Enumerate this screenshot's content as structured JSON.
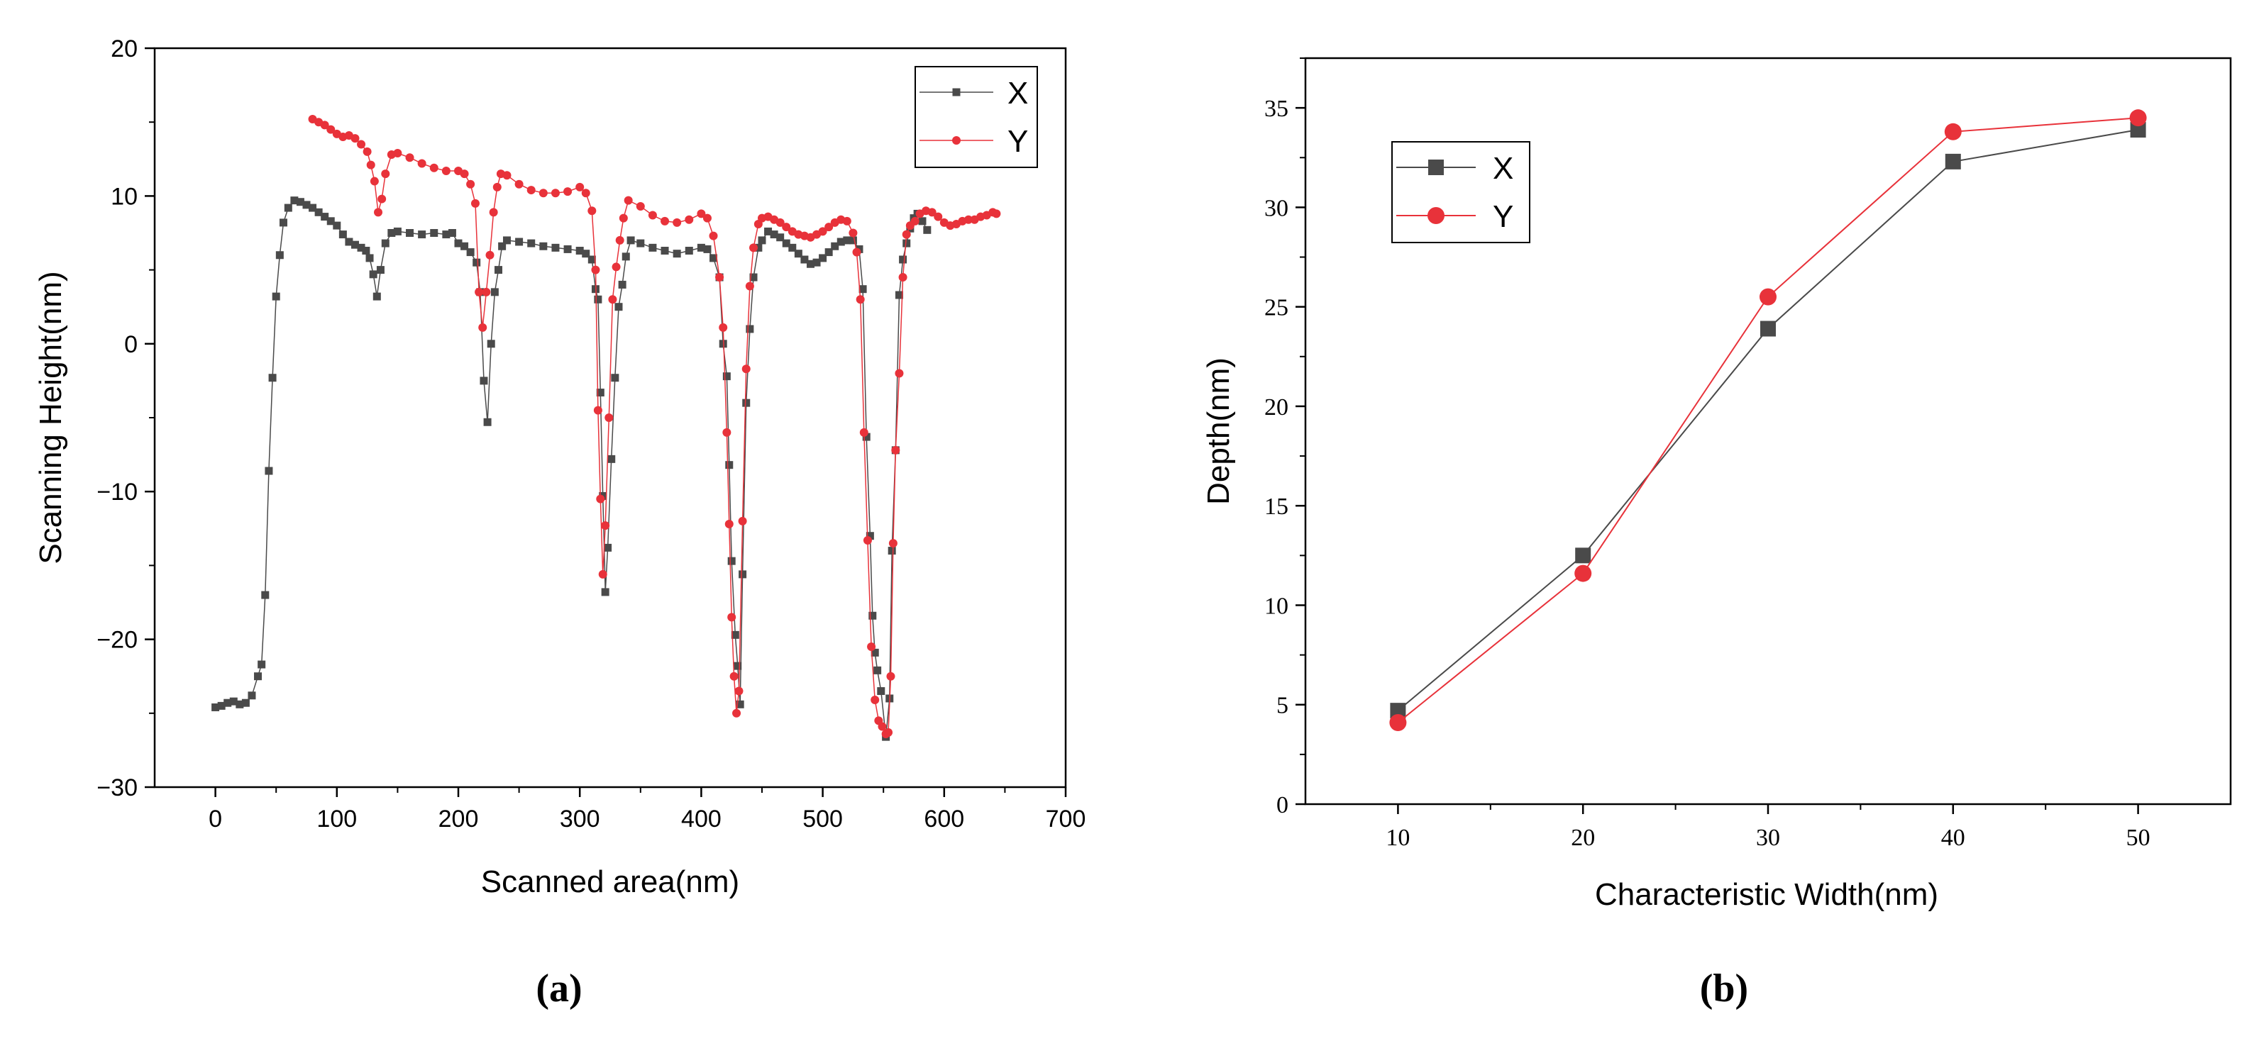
{
  "chart_data": [
    {
      "type": "scatter",
      "panel_label": "(a)",
      "title": "",
      "xlabel": "Scanned area(nm)",
      "ylabel": "Scanning Height(nm)",
      "xlim": [
        -50,
        700
      ],
      "ylim": [
        -30,
        20
      ],
      "xticks": [
        0,
        100,
        200,
        300,
        400,
        500,
        600,
        700
      ],
      "yticks": [
        -30,
        -20,
        -10,
        0,
        10,
        20
      ],
      "legend": "top-right",
      "series": [
        {
          "name": "X",
          "color": "#4a4a4a",
          "marker": "square",
          "points": [
            [
              0,
              -24.6
            ],
            [
              5,
              -24.5
            ],
            [
              10,
              -24.3
            ],
            [
              15,
              -24.2
            ],
            [
              20,
              -24.4
            ],
            [
              25,
              -24.3
            ],
            [
              30,
              -23.8
            ],
            [
              35,
              -22.5
            ],
            [
              38,
              -21.7
            ],
            [
              41,
              -17
            ],
            [
              44,
              -8.6
            ],
            [
              47,
              -2.3
            ],
            [
              50,
              3.2
            ],
            [
              53,
              6
            ],
            [
              56,
              8.2
            ],
            [
              60,
              9.2
            ],
            [
              65,
              9.7
            ],
            [
              70,
              9.6
            ],
            [
              75,
              9.4
            ],
            [
              80,
              9.2
            ],
            [
              85,
              8.9
            ],
            [
              90,
              8.6
            ],
            [
              95,
              8.3
            ],
            [
              100,
              8
            ],
            [
              105,
              7.4
            ],
            [
              110,
              6.9
            ],
            [
              115,
              6.7
            ],
            [
              120,
              6.5
            ],
            [
              124,
              6.3
            ],
            [
              127,
              5.8
            ],
            [
              130,
              4.7
            ],
            [
              133,
              3.2
            ],
            [
              136,
              5
            ],
            [
              140,
              6.8
            ],
            [
              145,
              7.5
            ],
            [
              150,
              7.6
            ],
            [
              160,
              7.5
            ],
            [
              170,
              7.4
            ],
            [
              180,
              7.5
            ],
            [
              190,
              7.4
            ],
            [
              195,
              7.5
            ],
            [
              200,
              6.8
            ],
            [
              205,
              6.6
            ],
            [
              210,
              6.2
            ],
            [
              215,
              5.5
            ],
            [
              218,
              3.5
            ],
            [
              221,
              -2.5
            ],
            [
              224,
              -5.3
            ],
            [
              227,
              0
            ],
            [
              230,
              3.5
            ],
            [
              233,
              5
            ],
            [
              236,
              6.6
            ],
            [
              240,
              7
            ],
            [
              250,
              6.9
            ],
            [
              260,
              6.8
            ],
            [
              270,
              6.6
            ],
            [
              280,
              6.5
            ],
            [
              290,
              6.4
            ],
            [
              300,
              6.3
            ],
            [
              305,
              6.1
            ],
            [
              310,
              5.7
            ],
            [
              313,
              3.7
            ],
            [
              315,
              3
            ],
            [
              317,
              -3.3
            ],
            [
              319,
              -10.3
            ],
            [
              321,
              -16.8
            ],
            [
              323,
              -13.8
            ],
            [
              326,
              -7.8
            ],
            [
              329,
              -2.3
            ],
            [
              332,
              2.5
            ],
            [
              335,
              4
            ],
            [
              338,
              5.9
            ],
            [
              342,
              7
            ],
            [
              350,
              6.8
            ],
            [
              360,
              6.5
            ],
            [
              370,
              6.3
            ],
            [
              380,
              6.1
            ],
            [
              390,
              6.3
            ],
            [
              400,
              6.5
            ],
            [
              405,
              6.4
            ],
            [
              410,
              5.8
            ],
            [
              415,
              4.5
            ],
            [
              418,
              0
            ],
            [
              421,
              -2.2
            ],
            [
              423,
              -8.2
            ],
            [
              425,
              -14.7
            ],
            [
              428,
              -19.7
            ],
            [
              430,
              -21.8
            ],
            [
              432,
              -24.4
            ],
            [
              434,
              -15.6
            ],
            [
              437,
              -4
            ],
            [
              440,
              1
            ],
            [
              443,
              4.5
            ],
            [
              447,
              6.5
            ],
            [
              450,
              7
            ],
            [
              455,
              7.6
            ],
            [
              460,
              7.4
            ],
            [
              465,
              7.2
            ],
            [
              470,
              6.8
            ],
            [
              475,
              6.5
            ],
            [
              480,
              6.1
            ],
            [
              485,
              5.7
            ],
            [
              490,
              5.4
            ],
            [
              495,
              5.5
            ],
            [
              500,
              5.8
            ],
            [
              505,
              6.2
            ],
            [
              510,
              6.6
            ],
            [
              515,
              6.9
            ],
            [
              520,
              7
            ],
            [
              525,
              7
            ],
            [
              530,
              6.4
            ],
            [
              533,
              3.7
            ],
            [
              536,
              -6.3
            ],
            [
              539,
              -13
            ],
            [
              541,
              -18.4
            ],
            [
              543,
              -20.9
            ],
            [
              545,
              -22.1
            ],
            [
              548,
              -23.5
            ],
            [
              552,
              -26.6
            ],
            [
              555,
              -24
            ],
            [
              557,
              -14
            ],
            [
              560,
              -7.2
            ],
            [
              563,
              3.3
            ],
            [
              566,
              5.7
            ],
            [
              569,
              6.8
            ],
            [
              572,
              7.8
            ],
            [
              575,
              8.5
            ],
            [
              578,
              8.8
            ],
            [
              582,
              8.3
            ],
            [
              586,
              7.7
            ]
          ]
        },
        {
          "name": "Y",
          "color": "#e8323a",
          "marker": "circle",
          "points": [
            [
              80,
              15.2
            ],
            [
              85,
              15
            ],
            [
              90,
              14.8
            ],
            [
              95,
              14.5
            ],
            [
              100,
              14.2
            ],
            [
              105,
              14
            ],
            [
              110,
              14.1
            ],
            [
              115,
              13.9
            ],
            [
              120,
              13.5
            ],
            [
              125,
              13
            ],
            [
              128,
              12.1
            ],
            [
              131,
              11
            ],
            [
              134,
              8.9
            ],
            [
              137,
              9.8
            ],
            [
              140,
              11.5
            ],
            [
              145,
              12.8
            ],
            [
              150,
              12.9
            ],
            [
              160,
              12.6
            ],
            [
              170,
              12.2
            ],
            [
              180,
              11.9
            ],
            [
              190,
              11.7
            ],
            [
              200,
              11.7
            ],
            [
              205,
              11.5
            ],
            [
              210,
              10.8
            ],
            [
              214,
              9.5
            ],
            [
              217,
              3.5
            ],
            [
              220,
              1.1
            ],
            [
              223,
              3.5
            ],
            [
              226,
              6
            ],
            [
              229,
              8.9
            ],
            [
              232,
              10.6
            ],
            [
              235,
              11.5
            ],
            [
              240,
              11.4
            ],
            [
              250,
              10.8
            ],
            [
              260,
              10.4
            ],
            [
              270,
              10.2
            ],
            [
              280,
              10.2
            ],
            [
              290,
              10.3
            ],
            [
              300,
              10.6
            ],
            [
              305,
              10.2
            ],
            [
              310,
              9
            ],
            [
              313,
              5
            ],
            [
              315,
              -4.5
            ],
            [
              317,
              -10.5
            ],
            [
              319,
              -15.6
            ],
            [
              321,
              -12.3
            ],
            [
              324,
              -5
            ],
            [
              327,
              3
            ],
            [
              330,
              5.2
            ],
            [
              333,
              7
            ],
            [
              336,
              8.5
            ],
            [
              340,
              9.7
            ],
            [
              350,
              9.3
            ],
            [
              360,
              8.7
            ],
            [
              370,
              8.3
            ],
            [
              380,
              8.2
            ],
            [
              390,
              8.4
            ],
            [
              400,
              8.8
            ],
            [
              405,
              8.5
            ],
            [
              410,
              7.3
            ],
            [
              415,
              4.5
            ],
            [
              418,
              1.1
            ],
            [
              421,
              -6
            ],
            [
              423,
              -12.2
            ],
            [
              425,
              -18.5
            ],
            [
              427,
              -22.5
            ],
            [
              429,
              -25
            ],
            [
              431,
              -23.5
            ],
            [
              434,
              -12
            ],
            [
              437,
              -1.7
            ],
            [
              440,
              3.9
            ],
            [
              443,
              6.5
            ],
            [
              447,
              8.1
            ],
            [
              450,
              8.5
            ],
            [
              455,
              8.6
            ],
            [
              460,
              8.4
            ],
            [
              465,
              8.2
            ],
            [
              470,
              7.9
            ],
            [
              475,
              7.6
            ],
            [
              480,
              7.4
            ],
            [
              485,
              7.3
            ],
            [
              490,
              7.2
            ],
            [
              495,
              7.4
            ],
            [
              500,
              7.6
            ],
            [
              505,
              7.9
            ],
            [
              510,
              8.2
            ],
            [
              515,
              8.4
            ],
            [
              520,
              8.3
            ],
            [
              525,
              7.5
            ],
            [
              528,
              6.2
            ],
            [
              531,
              3
            ],
            [
              534,
              -6
            ],
            [
              537,
              -13.3
            ],
            [
              540,
              -20.5
            ],
            [
              543,
              -24.1
            ],
            [
              546,
              -25.5
            ],
            [
              549,
              -25.9
            ],
            [
              552,
              -26.4
            ],
            [
              554,
              -26.3
            ],
            [
              556,
              -22.5
            ],
            [
              558,
              -13.5
            ],
            [
              560,
              -7.2
            ],
            [
              563,
              -2
            ],
            [
              566,
              4.5
            ],
            [
              569,
              7.4
            ],
            [
              572,
              8
            ],
            [
              576,
              8.3
            ],
            [
              580,
              8.8
            ],
            [
              585,
              9
            ],
            [
              590,
              8.9
            ],
            [
              595,
              8.6
            ],
            [
              600,
              8.2
            ],
            [
              605,
              8
            ],
            [
              610,
              8.1
            ],
            [
              615,
              8.3
            ],
            [
              620,
              8.4
            ],
            [
              625,
              8.4
            ],
            [
              630,
              8.6
            ],
            [
              635,
              8.7
            ],
            [
              640,
              8.9
            ],
            [
              643,
              8.8
            ]
          ]
        }
      ]
    },
    {
      "type": "line",
      "panel_label": "(b)",
      "title": "",
      "xlabel": "Characteristic Width(nm)",
      "ylabel": "Depth(nm)",
      "xlim": [
        5,
        55
      ],
      "ylim": [
        0,
        37.5
      ],
      "xticks": [
        10,
        20,
        30,
        40,
        50
      ],
      "yticks": [
        0,
        5,
        10,
        15,
        20,
        25,
        30,
        35
      ],
      "legend": "top-left",
      "series": [
        {
          "name": "X",
          "color": "#4a4a4a",
          "marker": "square",
          "x": [
            10,
            20,
            30,
            40,
            50
          ],
          "values": [
            4.7,
            12.5,
            23.9,
            32.3,
            33.9
          ]
        },
        {
          "name": "Y",
          "color": "#e8323a",
          "marker": "circle",
          "x": [
            10,
            20,
            30,
            40,
            50
          ],
          "values": [
            4.1,
            11.6,
            25.5,
            33.8,
            34.5
          ]
        }
      ]
    }
  ]
}
